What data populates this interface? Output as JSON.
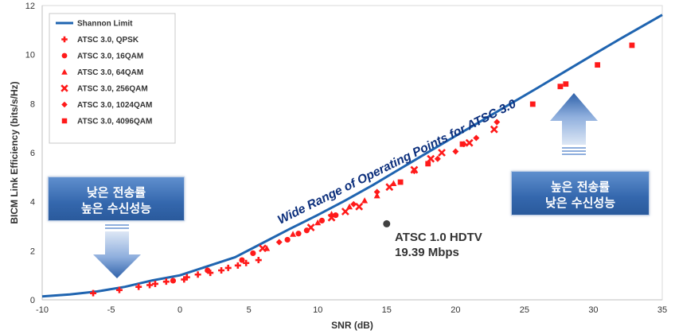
{
  "chart_data": {
    "type": "scatter",
    "xlabel": "SNR (dB)",
    "ylabel": "BICM Link Efficiency  (bits/s/Hz)",
    "xlim": [
      -10,
      35
    ],
    "ylim": [
      0,
      12
    ],
    "xticks": [
      -10,
      -5,
      0,
      5,
      10,
      15,
      20,
      25,
      30,
      35
    ],
    "yticks": [
      0,
      2,
      4,
      6,
      8,
      10,
      12
    ],
    "grid": false,
    "legend_position": "top-left",
    "series": [
      {
        "name": "Shannon Limit",
        "kind": "line",
        "color": "#1f64b0",
        "x": [
          -10,
          -8,
          -6,
          -4,
          -2,
          0,
          2,
          4,
          6,
          8,
          10,
          12,
          14,
          16,
          18,
          20,
          22,
          24,
          26,
          28,
          30,
          32,
          34,
          35
        ],
        "y": [
          0.14,
          0.22,
          0.34,
          0.53,
          0.79,
          1.0,
          1.37,
          1.74,
          2.32,
          2.9,
          3.46,
          4.05,
          4.68,
          5.35,
          6.02,
          6.68,
          7.34,
          8.0,
          8.66,
          9.33,
          10.0,
          10.66,
          11.3,
          11.62
        ]
      },
      {
        "name": "ATSC 3.0, QPSK",
        "kind": "scatter",
        "marker": "plus",
        "color": "#ff1a1a",
        "x": [
          -6.3,
          -4.4,
          -3.0,
          -2.2,
          -1.8,
          -1.0,
          0.3,
          0.5,
          1.3,
          2.2,
          3.0,
          3.5,
          4.2,
          4.8,
          5.7
        ],
        "y": [
          0.27,
          0.4,
          0.53,
          0.6,
          0.65,
          0.74,
          0.83,
          0.92,
          1.03,
          1.1,
          1.2,
          1.3,
          1.4,
          1.5,
          1.62
        ]
      },
      {
        "name": "ATSC 3.0, 16QAM",
        "kind": "scatter",
        "marker": "circle",
        "color": "#ff1a1a",
        "x": [
          -0.5,
          2.0,
          4.5,
          5.3,
          7.8,
          8.6,
          9.2,
          10.3,
          11.3
        ],
        "y": [
          0.78,
          1.2,
          1.62,
          1.9,
          2.45,
          2.7,
          2.83,
          3.23,
          3.45
        ]
      },
      {
        "name": "ATSC 3.0, 64QAM",
        "kind": "scatter",
        "marker": "triangle",
        "color": "#ff1a1a",
        "x": [
          6.3,
          8.2,
          10.0,
          11.0,
          12.3,
          13.4,
          14.3,
          15.5
        ],
        "y": [
          2.1,
          2.68,
          3.15,
          3.5,
          3.8,
          4.05,
          4.25,
          4.75
        ]
      },
      {
        "name": "ATSC 3.0, 256QAM",
        "kind": "scatter",
        "marker": "x",
        "color": "#ff1a1a",
        "x": [
          6.0,
          9.5,
          11.0,
          12.0,
          13.0,
          15.2,
          17.0,
          18.2,
          19.0,
          21.0,
          22.8
        ],
        "y": [
          2.1,
          2.95,
          3.35,
          3.6,
          3.8,
          4.6,
          5.3,
          5.75,
          6.0,
          6.4,
          6.95
        ]
      },
      {
        "name": "ATSC 3.0, 1024QAM",
        "kind": "scatter",
        "marker": "diamond",
        "color": "#ff1a1a",
        "x": [
          7.2,
          12.6,
          14.3,
          17.0,
          18.7,
          20.0,
          20.6,
          21.5,
          23.0
        ],
        "y": [
          2.35,
          3.9,
          4.4,
          5.25,
          5.75,
          6.05,
          6.35,
          6.6,
          7.25
        ]
      },
      {
        "name": "ATSC 3.0, 4096QAM",
        "kind": "scatter",
        "marker": "square",
        "color": "#ff1a1a",
        "x": [
          16.0,
          18.0,
          20.5,
          25.6,
          27.6,
          28.0,
          30.3,
          32.8
        ],
        "y": [
          4.8,
          5.55,
          6.35,
          7.98,
          8.7,
          8.8,
          9.58,
          10.38
        ]
      }
    ],
    "reference_point": {
      "x": 15.0,
      "y": 3.1,
      "color": "#404040"
    },
    "annotations": {
      "curve_label": "Wide Range of Operating Points for ATSC 3.0",
      "atsc1_line1": "ATSC 1.0 HDTV",
      "atsc1_line2": "19.39 Mbps",
      "left_callout": [
        "낮은 전송률",
        "높은 수신성능"
      ],
      "right_callout": [
        "높은 전송률",
        "낮은 수신성능"
      ]
    }
  }
}
